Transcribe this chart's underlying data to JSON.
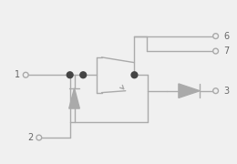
{
  "bg_color": "#f0f0f0",
  "line_color": "#aaaaaa",
  "dot_color": "#444444",
  "text_color": "#666666",
  "lw": 1.0,
  "figsize": [
    2.6,
    1.8
  ],
  "dpi": 100
}
